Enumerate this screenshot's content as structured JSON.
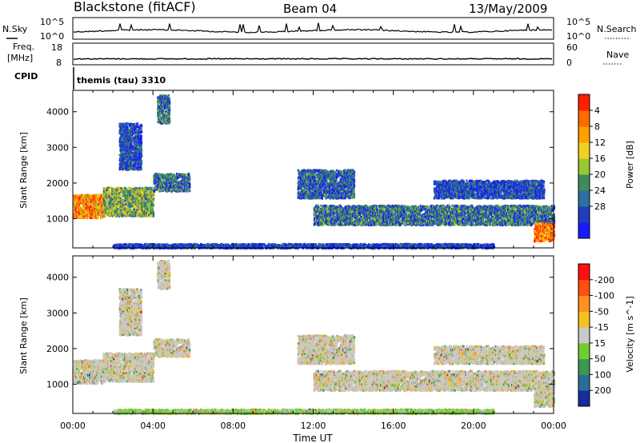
{
  "header": {
    "station": "Blackstone (fitACF)",
    "beam": "Beam 04",
    "date": "13/May/2009"
  },
  "strip": {
    "nsky_label": "N.Sky",
    "nsky_tick_top": "10^5",
    "nsky_tick_bottom": "10^0",
    "nsearch_label": "N.Search",
    "nsearch_tick_top": "10^5",
    "nsearch_tick_bottom": "10^0",
    "freq_label_line1": "Freq.",
    "freq_label_line2": "[MHz]",
    "freq_tick_top": "18",
    "freq_tick_bottom": "8",
    "nave_label": "Nave",
    "nave_tick_top": "60",
    "nave_tick_bottom": "0",
    "cpid_label": "CPID",
    "cpid_value": "themis (tau) 3310"
  },
  "chart_data": [
    {
      "type": "heatmap",
      "name": "power",
      "ylabel": "Slant Range [km]",
      "yticks": [
        1000,
        2000,
        3000,
        4000
      ],
      "ylim": [
        180,
        4600
      ],
      "xlim_hours": [
        0,
        24
      ],
      "colorbar": {
        "label": "Power [dB]",
        "ticks": [
          "4",
          "8",
          "12",
          "16",
          "20",
          "24",
          "28"
        ],
        "colors": [
          "#1a1aff",
          "#1f3fc0",
          "#2c6fa0",
          "#3e8c5a",
          "#9ac832",
          "#f0d020",
          "#ffa000",
          "#ff6a00",
          "#ff2000"
        ]
      },
      "bands": [
        {
          "t": [
            0.0,
            1.5
          ],
          "r": [
            1050,
            1700
          ],
          "level": 0.75
        },
        {
          "t": [
            1.5,
            4.0
          ],
          "r": [
            1100,
            1900
          ],
          "level": 0.45
        },
        {
          "t": [
            4.0,
            5.8
          ],
          "r": [
            1800,
            2300
          ],
          "level": 0.3
        },
        {
          "t": [
            2.3,
            3.4
          ],
          "r": [
            2400,
            3700
          ],
          "level": 0.2
        },
        {
          "t": [
            4.2,
            4.8
          ],
          "r": [
            3700,
            4500
          ],
          "level": 0.3
        },
        {
          "t": [
            11.2,
            14.0
          ],
          "r": [
            1600,
            2400
          ],
          "level": 0.25
        },
        {
          "t": [
            12.0,
            24.0
          ],
          "r": [
            850,
            1400
          ],
          "level": 0.3
        },
        {
          "t": [
            18.0,
            23.5
          ],
          "r": [
            1600,
            2100
          ],
          "level": 0.2
        },
        {
          "t": [
            23.0,
            24.0
          ],
          "r": [
            400,
            900
          ],
          "level": 0.8
        },
        {
          "t": [
            2.0,
            21.0
          ],
          "r": [
            200,
            320
          ],
          "level": 0.15
        }
      ]
    },
    {
      "type": "heatmap",
      "name": "velocity",
      "ylabel": "Slant Range [km]",
      "yticks": [
        1000,
        2000,
        3000,
        4000
      ],
      "ylim": [
        180,
        4600
      ],
      "xlim_hours": [
        0,
        24
      ],
      "xticks": [
        "00:00",
        "04:00",
        "08:00",
        "12:00",
        "16:00",
        "20:00",
        "00:00"
      ],
      "xlabel": "Time UT",
      "colorbar": {
        "label": "Velocity [m s^-1]",
        "ticks": [
          "200",
          "100",
          "50",
          "15",
          "-15",
          "-50",
          "-100",
          "-200"
        ],
        "colors": [
          "#1a2aa0",
          "#2a6e9a",
          "#3a9a50",
          "#70cc30",
          "#c8c8c8",
          "#f5c020",
          "#ff9020",
          "#ff5010",
          "#ff1010"
        ]
      }
    }
  ]
}
